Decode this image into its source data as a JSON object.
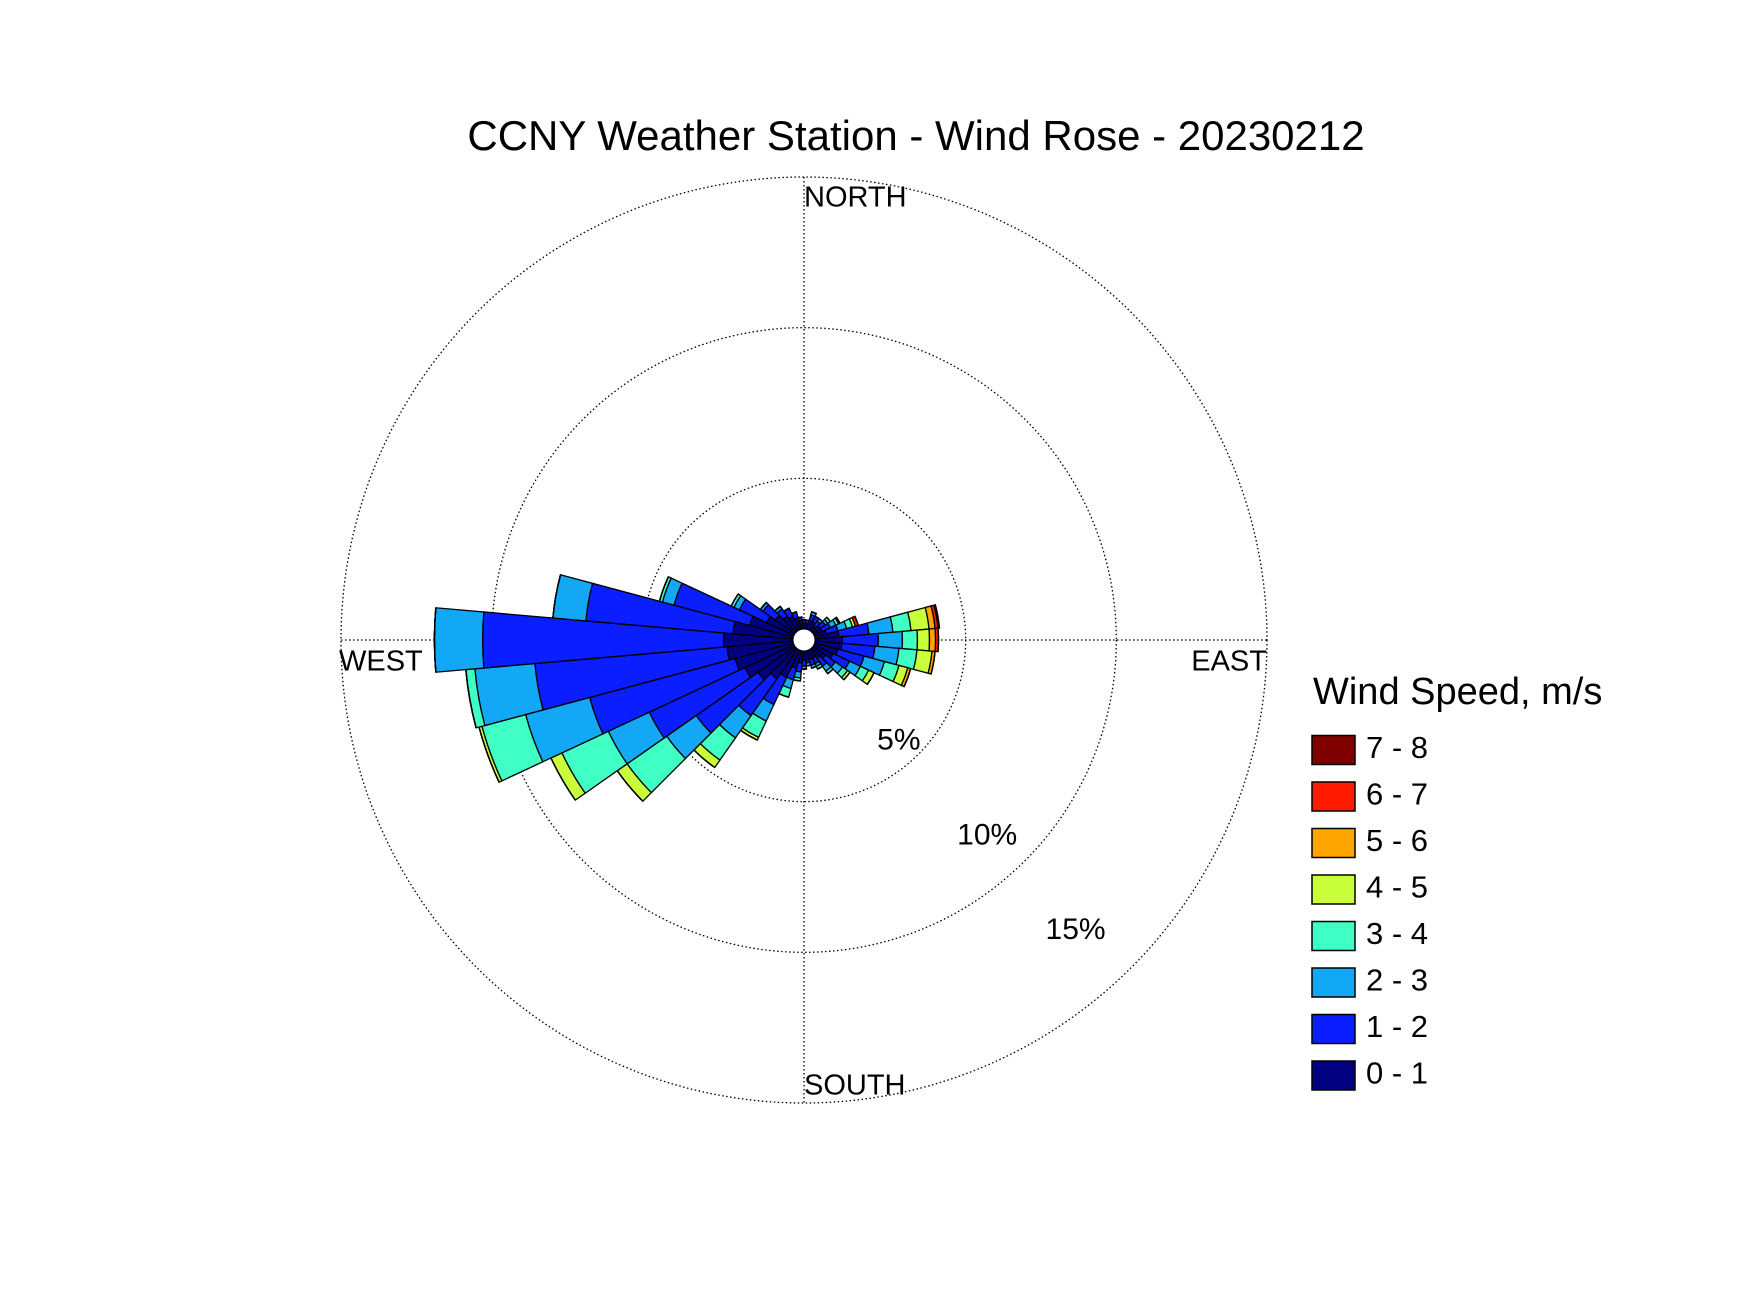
{
  "chart_data": {
    "type": "windrose",
    "title": "CCNY Weather Station - Wind Rose - 20230212",
    "direction_labels": [
      "NORTH",
      "EAST",
      "SOUTH",
      "WEST"
    ],
    "legend_title": "Wind Speed, m/s",
    "x": [
      0,
      10,
      20,
      30,
      40,
      50,
      60,
      70,
      80,
      90,
      100,
      110,
      120,
      130,
      140,
      150,
      160,
      170,
      180,
      190,
      200,
      210,
      220,
      230,
      240,
      250,
      260,
      270,
      280,
      290,
      300,
      310,
      320,
      330,
      340,
      350
    ],
    "rlim": [
      0,
      15
    ],
    "rticks": [
      {
        "value": 5,
        "label": "5%"
      },
      {
        "value": 10,
        "label": "10%"
      },
      {
        "value": 15,
        "label": "15%"
      }
    ],
    "grid": true,
    "series": [
      {
        "name": "0 - 1",
        "color": "#000080",
        "values": [
          0.2,
          0.2,
          0.3,
          0.3,
          0.2,
          0.3,
          0.3,
          0.4,
          0.8,
          0.9,
          0.9,
          0.8,
          0.7,
          0.5,
          0.4,
          0.3,
          0.3,
          0.3,
          0.3,
          0.4,
          0.6,
          1.0,
          1.2,
          1.5,
          1.8,
          2.0,
          2.2,
          2.3,
          2.0,
          1.5,
          1.0,
          0.8,
          0.6,
          0.5,
          0.4,
          0.3
        ]
      },
      {
        "name": "1 - 2",
        "color": "#0a1eff",
        "values": [
          0.1,
          0.1,
          0.2,
          0.2,
          0.2,
          0.2,
          0.3,
          0.4,
          1.0,
          1.2,
          1.1,
          0.9,
          0.6,
          0.4,
          0.3,
          0.2,
          0.2,
          0.1,
          0.2,
          0.3,
          0.4,
          1.0,
          1.5,
          2.5,
          3.5,
          5.0,
          6.4,
          8.0,
          4.9,
          2.6,
          1.0,
          0.5,
          0.3,
          0.3,
          0.2,
          0.1
        ]
      },
      {
        "name": "2 - 3",
        "color": "#12a8f5",
        "values": [
          0,
          0,
          0.1,
          0,
          0.1,
          0.1,
          0.2,
          0.3,
          0.8,
          0.8,
          0.8,
          0.7,
          0.4,
          0.3,
          0.2,
          0.1,
          0.1,
          0.1,
          0.1,
          0.2,
          0.3,
          0.6,
          0.9,
          1.2,
          1.5,
          2.2,
          2.0,
          1.6,
          1.1,
          0.4,
          0.2,
          0.1,
          0.1,
          0,
          0,
          0
        ]
      },
      {
        "name": "3 - 4",
        "color": "#40ffc4",
        "values": [
          0,
          0,
          0,
          0,
          0,
          0.1,
          0.1,
          0.2,
          0.6,
          0.5,
          0.6,
          0.5,
          0.3,
          0.2,
          0.1,
          0.1,
          0,
          0,
          0,
          0.1,
          0.3,
          0.6,
          0.9,
          1.6,
          1.7,
          1.5,
          0.3,
          0,
          0,
          0.1,
          0.1,
          0,
          0,
          0,
          0,
          0
        ]
      },
      {
        "name": "4 - 5",
        "color": "#c8ff3a",
        "values": [
          0,
          0,
          0,
          0,
          0,
          0,
          0.05,
          0.1,
          0.6,
          0.4,
          0.5,
          0.3,
          0.2,
          0.1,
          0,
          0,
          0,
          0,
          0,
          0,
          0,
          0.1,
          0.3,
          0.4,
          0.4,
          0.1,
          0,
          0,
          0,
          0,
          0,
          0,
          0,
          0,
          0,
          0
        ]
      },
      {
        "name": "5 - 6",
        "color": "#ffa500",
        "values": [
          0,
          0,
          0,
          0,
          0,
          0,
          0,
          0,
          0.2,
          0.2,
          0.1,
          0.1,
          0,
          0,
          0,
          0,
          0,
          0,
          0,
          0,
          0,
          0,
          0,
          0,
          0,
          0,
          0,
          0,
          0,
          0,
          0,
          0,
          0,
          0,
          0,
          0
        ]
      },
      {
        "name": "6 - 7",
        "color": "#ff1a00",
        "values": [
          0,
          0,
          0,
          0,
          0,
          0,
          0,
          0.1,
          0.1,
          0.1,
          0,
          0,
          0,
          0,
          0,
          0,
          0,
          0,
          0,
          0,
          0,
          0,
          0,
          0,
          0,
          0,
          0,
          0,
          0,
          0,
          0,
          0,
          0,
          0,
          0,
          0
        ]
      },
      {
        "name": "7 - 8",
        "color": "#800000",
        "values": [
          0,
          0,
          0,
          0,
          0,
          0,
          0,
          0,
          0.05,
          0,
          0,
          0,
          0,
          0,
          0,
          0,
          0,
          0,
          0,
          0,
          0,
          0,
          0,
          0,
          0,
          0,
          0,
          0,
          0,
          0,
          0,
          0,
          0,
          0,
          0,
          0
        ]
      }
    ]
  }
}
